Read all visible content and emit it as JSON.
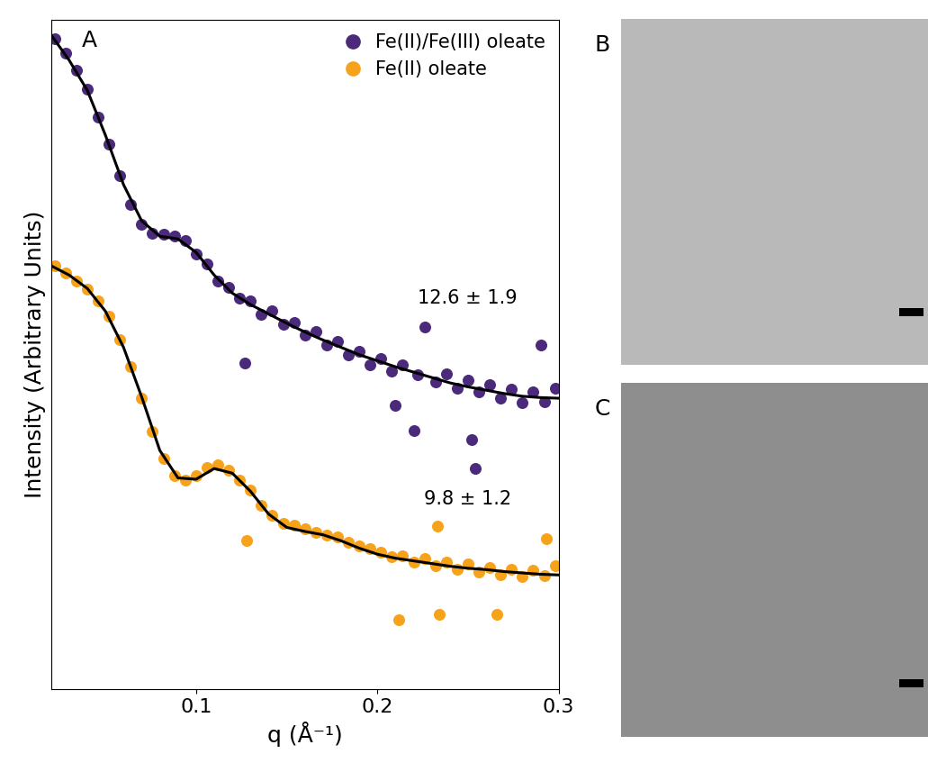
{
  "chart_data": {
    "type": "scatter",
    "panel_label": "A",
    "x_label": "q (Å⁻¹)",
    "y_label": "Intensity (Arbitrary Units)",
    "xlim": [
      0.02,
      0.3
    ],
    "xticks": [
      0.1,
      0.2,
      0.3
    ],
    "ylim": [
      0,
      10
    ],
    "yticks": [],
    "tick_labels": "x",
    "grid": false,
    "legend": "upper right",
    "annotations": [
      "12.6 ± 1.9",
      "9.8 ± 1.2"
    ],
    "series": [
      {
        "name": "Fe(II)/Fe(III) oleate",
        "color": "#4b2a7b",
        "type": "scatter",
        "marker": "o",
        "x": [
          0.022,
          0.028,
          0.034,
          0.04,
          0.046,
          0.052,
          0.058,
          0.064,
          0.07,
          0.076,
          0.082,
          0.088,
          0.094,
          0.1,
          0.106,
          0.112,
          0.118,
          0.124,
          0.127,
          0.13,
          0.136,
          0.142,
          0.148,
          0.154,
          0.16,
          0.166,
          0.172,
          0.178,
          0.184,
          0.19,
          0.196,
          0.202,
          0.208,
          0.21,
          0.214,
          0.22,
          0.222,
          0.226,
          0.232,
          0.238,
          0.244,
          0.25,
          0.252,
          0.254,
          0.256,
          0.262,
          0.268,
          0.274,
          0.28,
          0.286,
          0.29,
          0.292,
          0.298
        ],
        "values": [
          9.72,
          9.5,
          9.25,
          8.97,
          8.55,
          8.15,
          7.68,
          7.25,
          6.95,
          6.82,
          6.8,
          6.78,
          6.7,
          6.5,
          6.35,
          6.1,
          6.0,
          5.85,
          4.87,
          5.8,
          5.6,
          5.65,
          5.45,
          5.48,
          5.3,
          5.35,
          5.15,
          5.2,
          5.0,
          5.05,
          4.85,
          4.95,
          4.75,
          4.24,
          4.85,
          3.86,
          4.7,
          5.42,
          4.6,
          4.72,
          4.5,
          4.62,
          3.73,
          3.3,
          4.45,
          4.55,
          4.35,
          4.48,
          4.28,
          4.45,
          5.14,
          4.3,
          4.5
        ]
      },
      {
        "name": "Fe(II) oleate",
        "color": "#f7a21b",
        "type": "scatter",
        "marker": "o",
        "x": [
          0.022,
          0.028,
          0.034,
          0.04,
          0.046,
          0.052,
          0.058,
          0.064,
          0.07,
          0.076,
          0.082,
          0.088,
          0.094,
          0.1,
          0.106,
          0.112,
          0.118,
          0.124,
          0.128,
          0.13,
          0.136,
          0.142,
          0.148,
          0.154,
          0.16,
          0.166,
          0.172,
          0.178,
          0.184,
          0.19,
          0.196,
          0.202,
          0.208,
          0.212,
          0.214,
          0.22,
          0.226,
          0.232,
          0.233,
          0.234,
          0.238,
          0.244,
          0.25,
          0.256,
          0.262,
          0.266,
          0.268,
          0.274,
          0.28,
          0.286,
          0.292,
          0.293,
          0.298
        ],
        "values": [
          6.33,
          6.22,
          6.1,
          5.98,
          5.8,
          5.58,
          5.22,
          4.82,
          4.35,
          3.85,
          3.45,
          3.2,
          3.12,
          3.2,
          3.32,
          3.36,
          3.28,
          3.12,
          2.22,
          2.98,
          2.75,
          2.6,
          2.48,
          2.45,
          2.4,
          2.35,
          2.3,
          2.28,
          2.2,
          2.15,
          2.1,
          2.05,
          1.98,
          1.04,
          2.0,
          1.9,
          1.95,
          1.85,
          2.44,
          1.12,
          1.9,
          1.8,
          1.88,
          1.75,
          1.82,
          1.12,
          1.72,
          1.8,
          1.68,
          1.78,
          1.7,
          2.25,
          1.85
        ]
      },
      {
        "color": "#000000",
        "type": "line",
        "line_style": "solid",
        "x": [
          0.02,
          0.03,
          0.04,
          0.05,
          0.06,
          0.07,
          0.08,
          0.09,
          0.1,
          0.11,
          0.12,
          0.13,
          0.14,
          0.15,
          0.16,
          0.17,
          0.18,
          0.19,
          0.2,
          0.21,
          0.22,
          0.23,
          0.24,
          0.25,
          0.26,
          0.27,
          0.28,
          0.29,
          0.3
        ],
        "values": [
          9.78,
          9.4,
          8.95,
          8.28,
          7.54,
          7.0,
          6.77,
          6.73,
          6.53,
          6.19,
          5.92,
          5.75,
          5.61,
          5.47,
          5.34,
          5.22,
          5.11,
          5.0,
          4.91,
          4.82,
          4.74,
          4.66,
          4.58,
          4.52,
          4.47,
          4.42,
          4.38,
          4.36,
          4.35
        ]
      },
      {
        "color": "#000000",
        "type": "line",
        "line_style": "solid",
        "x": [
          0.02,
          0.03,
          0.04,
          0.05,
          0.06,
          0.07,
          0.08,
          0.09,
          0.1,
          0.11,
          0.12,
          0.13,
          0.14,
          0.15,
          0.16,
          0.17,
          0.18,
          0.19,
          0.2,
          0.21,
          0.22,
          0.23,
          0.24,
          0.25,
          0.26,
          0.27,
          0.28,
          0.29,
          0.3
        ],
        "values": [
          6.33,
          6.19,
          5.99,
          5.65,
          5.11,
          4.37,
          3.57,
          3.16,
          3.14,
          3.3,
          3.23,
          2.96,
          2.62,
          2.42,
          2.36,
          2.31,
          2.22,
          2.11,
          2.02,
          1.96,
          1.92,
          1.88,
          1.84,
          1.81,
          1.79,
          1.76,
          1.74,
          1.72,
          1.71
        ]
      }
    ]
  },
  "images": [
    {
      "label": "B"
    },
    {
      "label": "C"
    }
  ]
}
